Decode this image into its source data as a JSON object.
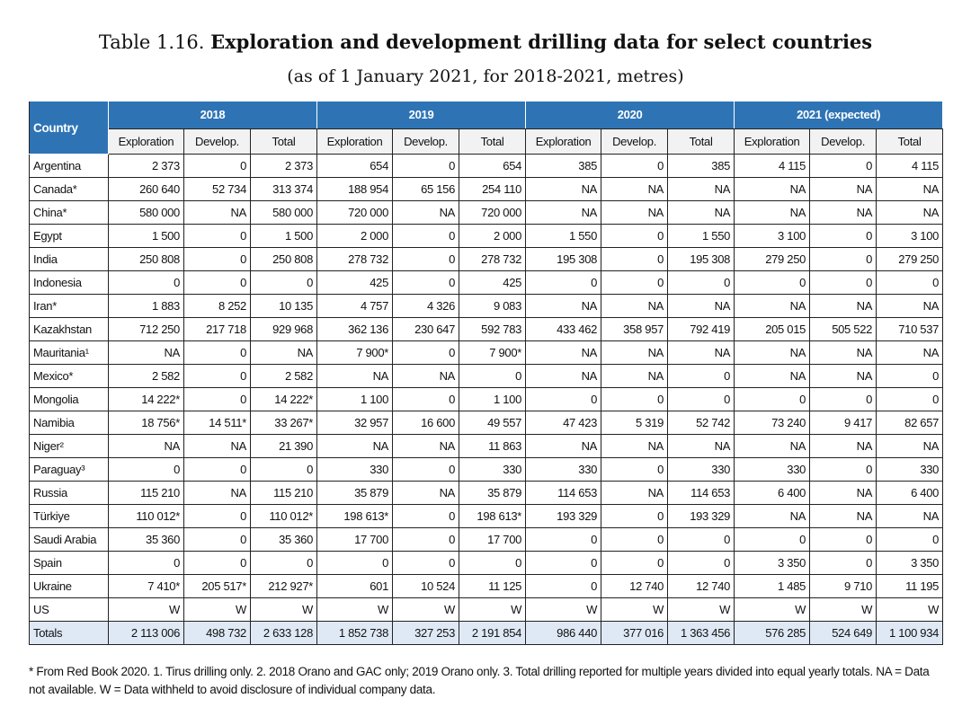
{
  "title": {
    "prefix": "Table 1.16. ",
    "bold": "Exploration and development drilling data for select countries"
  },
  "subtitle": "(as of 1 January 2021, for 2018-2021, metres)",
  "table": {
    "country_header": "Country",
    "years": [
      "2018",
      "2019",
      "2020",
      "2021 (expected)"
    ],
    "subheaders": [
      "Exploration",
      "Develop.",
      "Total"
    ],
    "rows": [
      {
        "country": "Argentina",
        "values": [
          "2 373",
          "0",
          "2 373",
          "654",
          "0",
          "654",
          "385",
          "0",
          "385",
          "4 115",
          "0",
          "4 115"
        ]
      },
      {
        "country": "Canada*",
        "values": [
          "260 640",
          "52 734",
          "313 374",
          "188 954",
          "65 156",
          "254 110",
          "NA",
          "NA",
          "NA",
          "NA",
          "NA",
          "NA"
        ]
      },
      {
        "country": "China*",
        "values": [
          "580 000",
          "NA",
          "580 000",
          "720 000",
          "NA",
          "720 000",
          "NA",
          "NA",
          "NA",
          "NA",
          "NA",
          "NA"
        ]
      },
      {
        "country": "Egypt",
        "values": [
          "1 500",
          "0",
          "1 500",
          "2 000",
          "0",
          "2 000",
          "1 550",
          "0",
          "1 550",
          "3 100",
          "0",
          "3 100"
        ]
      },
      {
        "country": "India",
        "values": [
          "250 808",
          "0",
          "250 808",
          "278 732",
          "0",
          "278 732",
          "195 308",
          "0",
          "195 308",
          "279 250",
          "0",
          "279 250"
        ]
      },
      {
        "country": "Indonesia",
        "values": [
          "0",
          "0",
          "0",
          "425",
          "0",
          "425",
          "0",
          "0",
          "0",
          "0",
          "0",
          "0"
        ]
      },
      {
        "country": "Iran*",
        "values": [
          "1 883",
          "8 252",
          "10 135",
          "4 757",
          "4 326",
          "9 083",
          "NA",
          "NA",
          "NA",
          "NA",
          "NA",
          "NA"
        ]
      },
      {
        "country": "Kazakhstan",
        "values": [
          "712 250",
          "217 718",
          "929 968",
          "362 136",
          "230 647",
          "592 783",
          "433 462",
          "358 957",
          "792 419",
          "205 015",
          "505 522",
          "710 537"
        ]
      },
      {
        "country": "Mauritania¹",
        "values": [
          "NA",
          "0",
          "NA",
          "7 900*",
          "0",
          "7 900*",
          "NA",
          "NA",
          "NA",
          "NA",
          "NA",
          "NA"
        ]
      },
      {
        "country": "Mexico*",
        "values": [
          "2 582",
          "0",
          "2 582",
          "NA",
          "NA",
          "0",
          "NA",
          "NA",
          "0",
          "NA",
          "NA",
          "0"
        ]
      },
      {
        "country": "Mongolia",
        "values": [
          "14 222*",
          "0",
          "14 222*",
          "1 100",
          "0",
          "1 100",
          "0",
          "0",
          "0",
          "0",
          "0",
          "0"
        ]
      },
      {
        "country": "Namibia",
        "values": [
          "18 756*",
          "14 511*",
          "33 267*",
          "32 957",
          "16 600",
          "49 557",
          "47 423",
          "5 319",
          "52 742",
          "73 240",
          "9 417",
          "82 657"
        ]
      },
      {
        "country": "Niger²",
        "values": [
          "NA",
          "NA",
          "21 390",
          "NA",
          "NA",
          "11 863",
          "NA",
          "NA",
          "NA",
          "NA",
          "NA",
          "NA"
        ]
      },
      {
        "country": "Paraguay³",
        "values": [
          "0",
          "0",
          "0",
          "330",
          "0",
          "330",
          "330",
          "0",
          "330",
          "330",
          "0",
          "330"
        ]
      },
      {
        "country": "Russia",
        "values": [
          "115 210",
          "NA",
          "115 210",
          "35 879",
          "NA",
          "35 879",
          "114 653",
          "NA",
          "114 653",
          "6 400",
          "NA",
          "6 400"
        ]
      },
      {
        "country": "Türkiye",
        "values": [
          "110 012*",
          "0",
          "110 012*",
          "198 613*",
          "0",
          "198 613*",
          "193 329",
          "0",
          "193 329",
          "NA",
          "NA",
          "NA"
        ]
      },
      {
        "country": "Saudi Arabia",
        "values": [
          "35 360",
          "0",
          "35 360",
          "17 700",
          "0",
          "17 700",
          "0",
          "0",
          "0",
          "0",
          "0",
          "0"
        ]
      },
      {
        "country": "Spain",
        "values": [
          "0",
          "0",
          "0",
          "0",
          "0",
          "0",
          "0",
          "0",
          "0",
          "3 350",
          "0",
          "3 350"
        ]
      },
      {
        "country": "Ukraine",
        "values": [
          "7 410*",
          "205 517*",
          "212 927*",
          "601",
          "10 524",
          "11 125",
          "0",
          "12 740",
          "12 740",
          "1 485",
          "9 710",
          "11 195"
        ]
      },
      {
        "country": "US",
        "values": [
          "W",
          "W",
          "W",
          "W",
          "W",
          "W",
          "W",
          "W",
          "W",
          "W",
          "W",
          "W"
        ]
      }
    ],
    "totals": {
      "label": "Totals",
      "values": [
        "2 113 006",
        "498 732",
        "2 633 128",
        "1 852 738",
        "327 253",
        "2 191 854",
        "986 440",
        "377 016",
        "1 363 456",
        "576 285",
        "524 649",
        "1 100 934"
      ]
    }
  },
  "footnote": "* From Red Book 2020. 1. Tirus drilling only. 2. 2018 Orano and GAC only; 2019 Orano only. 3. Total drilling reported for multiple years divided into equal yearly totals. NA = Data not available. W = Data withheld to avoid disclosure of individual company data.",
  "colors": {
    "header_blue": "#2e74b5",
    "subheader_gray": "#f2f2f2",
    "totals_row": "#dfe9f5"
  }
}
